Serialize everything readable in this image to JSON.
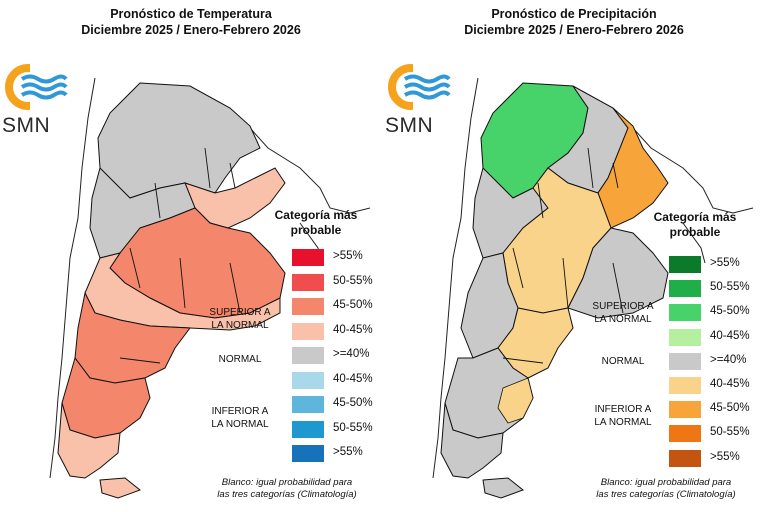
{
  "panels": {
    "temperature": {
      "title_line1": "Pronóstico de Temperatura",
      "title_line2": "Diciembre 2025 / Enero-Febrero 2026",
      "logo_text": "SMN",
      "legend": {
        "title_line1": "Categoría más",
        "title_line2": "probable",
        "upper_label_line1": "SUPERIOR A",
        "upper_label_line2": "LA NORMAL",
        "normal_label": "NORMAL",
        "lower_label_line1": "INFERIOR A",
        "lower_label_line2": "LA NORMAL",
        "items": [
          {
            "label": ">55%",
            "color": "#e8112d"
          },
          {
            "label": "50-55%",
            "color": "#f04e4e"
          },
          {
            "label": "45-50%",
            "color": "#f4876b"
          },
          {
            "label": "40-45%",
            "color": "#f9c0aa"
          },
          {
            "label": ">=40%",
            "color": "#c9c9c9"
          },
          {
            "label": "40-45%",
            "color": "#a9d8ea"
          },
          {
            "label": "45-50%",
            "color": "#5eb6dc"
          },
          {
            "label": "50-55%",
            "color": "#1f97cf"
          },
          {
            "label": ">55%",
            "color": "#1772b9"
          }
        ]
      },
      "note_line1": "Blanco: igual probabilidad para",
      "note_line2": "las tres categorías (Climatología)"
    },
    "precipitation": {
      "title_line1": "Pronóstico de Precipitación",
      "title_line2": "Diciembre 2025 / Enero-Febrero 2026",
      "logo_text": "SMN",
      "legend": {
        "title_line1": "Categoría más",
        "title_line2": "probable",
        "upper_label_line1": "SUPERIOR A",
        "upper_label_line2": "LA NORMAL",
        "normal_label": "NORMAL",
        "lower_label_line1": "INFERIOR A",
        "lower_label_line2": "LA NORMAL",
        "items": [
          {
            "label": ">55%",
            "color": "#0b7a2a"
          },
          {
            "label": "50-55%",
            "color": "#1fae48"
          },
          {
            "label": "45-50%",
            "color": "#48d36a"
          },
          {
            "label": "40-45%",
            "color": "#b5ef9f"
          },
          {
            "label": ">=40%",
            "color": "#c9c9c9"
          },
          {
            "label": "40-45%",
            "color": "#f9d38a"
          },
          {
            "label": "45-50%",
            "color": "#f7a43a"
          },
          {
            "label": "50-55%",
            "color": "#ef7614"
          },
          {
            "label": ">55%",
            "color": "#c45511"
          }
        ]
      },
      "note_line1": "Blanco: igual probabilidad para",
      "note_line2": "las tres categorías (Climatología)"
    }
  },
  "colors": {
    "logo_orange": "#f5a21c",
    "logo_blue": "#2f98d6",
    "map_gray": "#c9c9c9",
    "border": "#111111"
  }
}
